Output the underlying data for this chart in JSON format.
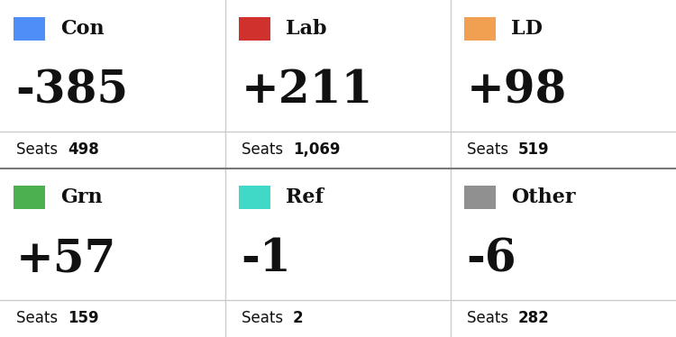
{
  "parties": [
    {
      "name": "Con",
      "color": "#4f8ef7",
      "change": "-385",
      "seats": "498",
      "row": 0,
      "col": 0
    },
    {
      "name": "Lab",
      "color": "#d0312d",
      "change": "+211",
      "seats": "1,069",
      "row": 0,
      "col": 1
    },
    {
      "name": "LD",
      "color": "#f0a050",
      "change": "+98",
      "seats": "519",
      "row": 0,
      "col": 2
    },
    {
      "name": "Grn",
      "color": "#4caf50",
      "change": "+57",
      "seats": "159",
      "row": 1,
      "col": 0
    },
    {
      "name": "Ref",
      "color": "#40d9c8",
      "change": "-1",
      "seats": "2",
      "row": 1,
      "col": 1
    },
    {
      "name": "Other",
      "color": "#909090",
      "change": "-6",
      "seats": "282",
      "row": 1,
      "col": 2
    }
  ],
  "bg_color": "#ffffff",
  "text_color": "#111111",
  "grid_color_light": "#cccccc",
  "grid_color_dark": "#777777",
  "seats_label": "Seats",
  "fig_width": 7.5,
  "fig_height": 3.74
}
